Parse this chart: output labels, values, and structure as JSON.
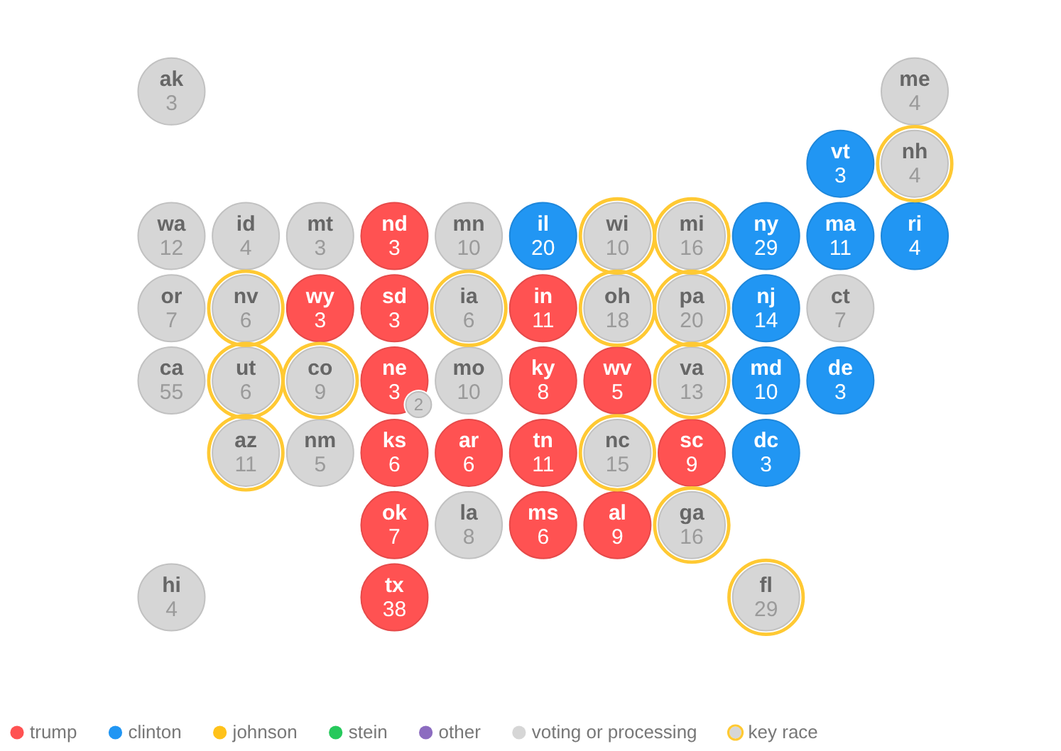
{
  "chart_data": {
    "type": "other",
    "categories": [
      "ak",
      "me",
      "vt",
      "nh",
      "wa",
      "id",
      "mt",
      "nd",
      "mn",
      "il",
      "wi",
      "mi",
      "ny",
      "ma",
      "ri",
      "or",
      "nv",
      "wy",
      "sd",
      "ia",
      "in",
      "oh",
      "pa",
      "nj",
      "ct",
      "ca",
      "ut",
      "co",
      "ne",
      "mo",
      "ky",
      "wv",
      "va",
      "md",
      "de",
      "az",
      "nm",
      "ks",
      "ar",
      "tn",
      "nc",
      "sc",
      "dc",
      "ok",
      "la",
      "ms",
      "al",
      "ga",
      "hi",
      "tx",
      "fl"
    ],
    "series": [
      {
        "name": "trump",
        "color": "#ff5252",
        "values": [
          null,
          null,
          null,
          null,
          null,
          null,
          null,
          3,
          null,
          null,
          null,
          null,
          null,
          null,
          null,
          null,
          null,
          3,
          3,
          null,
          11,
          null,
          null,
          null,
          null,
          null,
          null,
          null,
          3,
          null,
          8,
          5,
          null,
          null,
          null,
          null,
          null,
          6,
          6,
          11,
          null,
          9,
          null,
          7,
          null,
          6,
          9,
          null,
          null,
          38,
          null
        ]
      },
      {
        "name": "clinton",
        "color": "#2196f3",
        "values": [
          null,
          null,
          3,
          null,
          null,
          null,
          null,
          null,
          null,
          20,
          null,
          null,
          29,
          11,
          4,
          null,
          null,
          null,
          null,
          null,
          null,
          null,
          null,
          14,
          null,
          null,
          null,
          null,
          null,
          null,
          null,
          null,
          null,
          10,
          3,
          null,
          null,
          null,
          null,
          null,
          null,
          null,
          3,
          null,
          null,
          null,
          null,
          null,
          null,
          null,
          null
        ]
      },
      {
        "name": "johnson",
        "color": "#ffc21a",
        "values": [
          null,
          null,
          null,
          null,
          null,
          null,
          null,
          null,
          null,
          null,
          null,
          null,
          null,
          null,
          null,
          null,
          null,
          null,
          null,
          null,
          null,
          null,
          null,
          null,
          null,
          null,
          null,
          null,
          null,
          null,
          null,
          null,
          null,
          null,
          null,
          null,
          null,
          null,
          null,
          null,
          null,
          null,
          null,
          null,
          null,
          null,
          null,
          null,
          null,
          null,
          null
        ]
      },
      {
        "name": "stein",
        "color": "#26c95c",
        "values": [
          null,
          null,
          null,
          null,
          null,
          null,
          null,
          null,
          null,
          null,
          null,
          null,
          null,
          null,
          null,
          null,
          null,
          null,
          null,
          null,
          null,
          null,
          null,
          null,
          null,
          null,
          null,
          null,
          null,
          null,
          null,
          null,
          null,
          null,
          null,
          null,
          null,
          null,
          null,
          null,
          null,
          null,
          null,
          null,
          null,
          null,
          null,
          null,
          null,
          null,
          null
        ]
      },
      {
        "name": "other",
        "color": "#8c6cc0",
        "values": [
          null,
          null,
          null,
          null,
          null,
          null,
          null,
          null,
          null,
          null,
          null,
          null,
          null,
          null,
          null,
          null,
          null,
          null,
          null,
          null,
          null,
          null,
          null,
          null,
          null,
          null,
          null,
          null,
          null,
          null,
          null,
          null,
          null,
          null,
          null,
          null,
          null,
          null,
          null,
          null,
          null,
          null,
          null,
          null,
          null,
          null,
          null,
          null,
          null,
          null,
          null
        ]
      },
      {
        "name": "voting or processing",
        "color": "#d6d6d6",
        "values": [
          3,
          4,
          null,
          null,
          12,
          4,
          3,
          null,
          10,
          null,
          null,
          null,
          null,
          null,
          null,
          7,
          null,
          null,
          null,
          null,
          null,
          null,
          null,
          null,
          7,
          55,
          null,
          null,
          null,
          10,
          null,
          null,
          null,
          null,
          null,
          null,
          5,
          null,
          null,
          null,
          null,
          null,
          null,
          null,
          8,
          null,
          null,
          null,
          4,
          null,
          null
        ]
      },
      {
        "name": "key race",
        "color": "#ffc933",
        "values": [
          null,
          null,
          null,
          4,
          null,
          null,
          null,
          null,
          null,
          null,
          10,
          16,
          null,
          null,
          null,
          null,
          6,
          null,
          null,
          6,
          null,
          18,
          20,
          null,
          null,
          null,
          6,
          9,
          null,
          null,
          null,
          null,
          13,
          null,
          null,
          11,
          null,
          null,
          null,
          null,
          15,
          null,
          null,
          null,
          null,
          null,
          null,
          16,
          null,
          null,
          29
        ],
        "colors": [
          null,
          null,
          null,
          "#d6d6d6",
          null,
          null,
          null,
          null,
          null,
          null,
          "#d6d6d6",
          "#d6d6d6",
          null,
          null,
          null,
          null,
          "#d6d6d6",
          null,
          null,
          "#d6d6d6",
          null,
          "#d6d6d6",
          "#d6d6d6",
          null,
          null,
          null,
          "#d6d6d6",
          "#d6d6d6",
          null,
          null,
          null,
          null,
          "#d6d6d6",
          null,
          null,
          "#d6d6d6",
          null,
          null,
          null,
          null,
          "#d6d6d6",
          null,
          null,
          null,
          null,
          null,
          null,
          "#d6d6d6",
          null,
          null,
          "#d6d6d6"
        ]
      }
    ],
    "data_labels": true,
    "legend": "bottom",
    "annotations": [
      {
        "text": "2",
        "x": "ne"
      }
    ]
  }
}
